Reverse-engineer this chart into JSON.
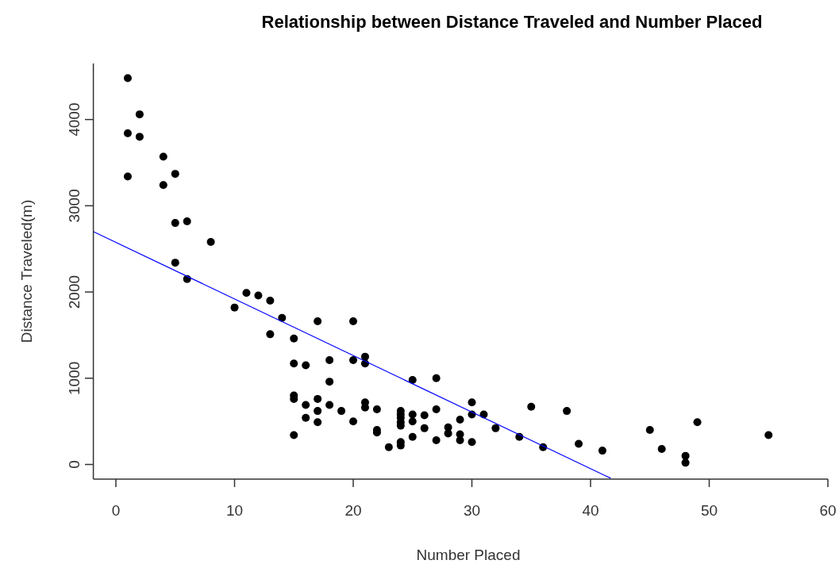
{
  "chart_data": {
    "type": "scatter",
    "title": "Relationship between Distance Traveled and Number Placed",
    "xlabel": "Number Placed",
    "ylabel": "Distance Traveled(m)",
    "xlim": [
      -1.9,
      60
    ],
    "ylim": [
      -170,
      4650
    ],
    "xticks": [
      0,
      10,
      20,
      30,
      40,
      50,
      60
    ],
    "yticks": [
      0,
      1000,
      2000,
      3000,
      4000
    ],
    "grid": false,
    "marker": "circle",
    "series": [
      {
        "type": "scatter",
        "color": "#000000",
        "x": [
          1,
          1,
          1,
          2,
          2,
          4,
          4,
          5,
          5,
          5,
          6,
          6,
          8,
          10,
          11,
          12,
          13,
          13,
          14,
          15,
          15,
          15,
          15,
          15,
          16,
          16,
          16,
          17,
          17,
          17,
          17,
          18,
          18,
          18,
          19,
          20,
          20,
          20,
          21,
          21,
          21,
          21,
          22,
          22,
          22,
          23,
          24,
          24,
          24,
          24,
          24,
          24,
          24,
          25,
          25,
          25,
          25,
          26,
          26,
          27,
          27,
          27,
          28,
          28,
          29,
          29,
          29,
          30,
          30,
          30,
          31,
          32,
          34,
          35,
          36,
          38,
          39,
          41,
          45,
          46,
          48,
          48,
          49,
          55
        ],
        "values": [
          4480,
          3840,
          3340,
          4060,
          3800,
          3570,
          3240,
          3370,
          2800,
          2340,
          2820,
          2150,
          2580,
          1820,
          1990,
          1960,
          1900,
          1510,
          1700,
          1460,
          1170,
          800,
          760,
          340,
          1150,
          690,
          540,
          1660,
          760,
          620,
          490,
          1210,
          960,
          690,
          620,
          1660,
          1210,
          500,
          1250,
          1170,
          720,
          660,
          640,
          400,
          370,
          200,
          620,
          580,
          540,
          490,
          450,
          260,
          220,
          980,
          580,
          500,
          320,
          570,
          420,
          1000,
          640,
          280,
          430,
          360,
          520,
          350,
          280,
          720,
          580,
          260,
          580,
          420,
          320,
          670,
          200,
          620,
          240,
          160,
          400,
          180,
          100,
          20,
          490,
          340
        ]
      },
      {
        "type": "line",
        "color": "#0000ff",
        "x": [
          -1.9,
          41.7
        ],
        "values": [
          2700,
          -160
        ],
        "marker": "none"
      }
    ]
  }
}
